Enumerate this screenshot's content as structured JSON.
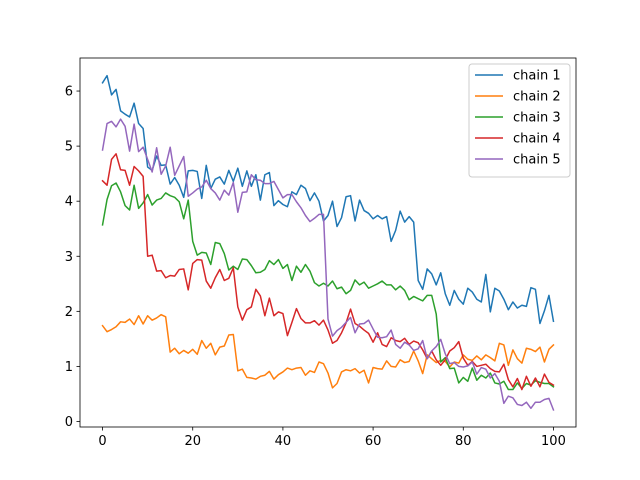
{
  "chart_data": {
    "type": "line",
    "title": "",
    "xlabel": "",
    "ylabel": "",
    "xlim": [
      -5,
      105
    ],
    "ylim": [
      -0.1,
      6.6
    ],
    "x_ticks": [
      0,
      20,
      40,
      60,
      80,
      100
    ],
    "y_ticks": [
      0,
      1,
      2,
      3,
      4,
      5,
      6
    ],
    "x_tick_labels": [
      "0",
      "20",
      "40",
      "60",
      "80",
      "100"
    ],
    "y_tick_labels": [
      "0",
      "1",
      "2",
      "3",
      "4",
      "5",
      "6"
    ],
    "grid": false,
    "legend_position": "top-right",
    "series": [
      {
        "name": "chain 1",
        "color": "#1f77b4",
        "values": [
          6.15,
          6.28,
          5.93,
          6.03,
          5.64,
          5.58,
          5.53,
          5.78,
          5.41,
          5.32,
          4.62,
          4.56,
          4.82,
          4.65,
          4.66,
          4.31,
          4.43,
          4.29,
          4.07,
          4.55,
          4.56,
          4.54,
          4.05,
          4.65,
          4.23,
          4.4,
          4.44,
          4.31,
          4.56,
          4.36,
          4.6,
          4.27,
          4.55,
          4.27,
          4.48,
          4.02,
          4.48,
          4.52,
          3.92,
          4.01,
          3.94,
          3.9,
          4.17,
          4.12,
          4.29,
          4.23,
          4.01,
          4.15,
          4.0,
          3.64,
          3.74,
          4.0,
          3.54,
          3.7,
          4.08,
          4.1,
          3.64,
          4.02,
          3.83,
          3.78,
          3.68,
          3.74,
          3.68,
          3.72,
          3.27,
          3.47,
          3.82,
          3.62,
          3.72,
          3.62,
          2.56,
          2.4,
          2.77,
          2.68,
          2.48,
          2.7,
          2.32,
          2.11,
          2.38,
          2.22,
          2.13,
          2.42,
          2.35,
          2.22,
          2.17,
          2.67,
          1.99,
          2.42,
          2.37,
          2.22,
          2.03,
          2.17,
          2.06,
          2.11,
          2.09,
          2.43,
          2.4,
          1.78,
          2.01,
          2.29,
          1.82
        ]
      },
      {
        "name": "chain 2",
        "color": "#ff7f0e",
        "values": [
          1.74,
          1.63,
          1.67,
          1.72,
          1.81,
          1.8,
          1.86,
          1.76,
          1.92,
          1.77,
          1.92,
          1.84,
          1.88,
          1.94,
          1.9,
          1.26,
          1.33,
          1.23,
          1.29,
          1.24,
          1.31,
          1.22,
          1.47,
          1.33,
          1.42,
          1.21,
          1.35,
          1.37,
          1.57,
          1.58,
          0.92,
          0.95,
          0.8,
          0.79,
          0.77,
          0.82,
          0.84,
          0.91,
          0.77,
          0.85,
          0.9,
          0.97,
          0.94,
          0.97,
          0.98,
          0.84,
          0.92,
          0.89,
          1.08,
          1.05,
          0.88,
          0.61,
          0.69,
          0.9,
          0.94,
          0.92,
          0.96,
          0.88,
          0.93,
          0.7,
          0.98,
          0.96,
          0.95,
          1.1,
          1.0,
          0.99,
          1.12,
          1.07,
          1.09,
          1.28,
          1.1,
          0.87,
          1.21,
          1.14,
          1.07,
          1.11,
          1.09,
          0.99,
          1.08,
          1.06,
          1.21,
          1.13,
          1.11,
          1.19,
          1.12,
          1.21,
          1.16,
          1.1,
          1.42,
          1.39,
          1.02,
          1.3,
          1.14,
          1.06,
          1.33,
          1.31,
          1.27,
          1.35,
          1.08,
          1.31,
          1.39
        ]
      },
      {
        "name": "chain 3",
        "color": "#2ca02c",
        "values": [
          3.57,
          4.03,
          4.28,
          4.33,
          4.17,
          3.92,
          3.84,
          4.29,
          3.87,
          3.97,
          4.12,
          3.93,
          4.02,
          4.05,
          4.15,
          4.1,
          4.07,
          3.99,
          3.68,
          4.02,
          3.27,
          3.02,
          3.07,
          3.06,
          2.85,
          3.25,
          3.23,
          3.05,
          2.75,
          2.82,
          2.76,
          2.95,
          2.94,
          2.83,
          2.7,
          2.71,
          2.76,
          2.92,
          2.85,
          2.94,
          2.78,
          2.85,
          2.56,
          2.82,
          2.71,
          2.85,
          2.73,
          2.52,
          2.46,
          2.51,
          2.46,
          2.55,
          2.41,
          2.44,
          2.32,
          2.38,
          2.57,
          2.48,
          2.53,
          2.42,
          2.46,
          2.5,
          2.55,
          2.48,
          2.48,
          2.39,
          2.46,
          2.38,
          2.21,
          2.27,
          2.23,
          2.19,
          2.29,
          2.29,
          1.95,
          1.08,
          1.16,
          0.96,
          0.97,
          0.7,
          0.8,
          0.73,
          0.97,
          0.75,
          0.84,
          0.79,
          0.88,
          0.7,
          0.68,
          0.73,
          0.58,
          0.58,
          0.7,
          0.6,
          0.69,
          0.66,
          0.74,
          0.71,
          0.69,
          0.69,
          0.63
        ]
      },
      {
        "name": "chain 4",
        "color": "#d62728",
        "values": [
          4.37,
          4.29,
          4.76,
          4.86,
          4.57,
          4.56,
          4.29,
          4.63,
          4.55,
          4.45,
          3.0,
          3.02,
          2.73,
          2.74,
          2.61,
          2.65,
          2.64,
          2.76,
          2.77,
          2.39,
          2.87,
          2.94,
          2.93,
          2.55,
          2.42,
          2.61,
          2.76,
          2.56,
          2.6,
          2.79,
          2.08,
          1.84,
          2.03,
          2.08,
          2.4,
          2.28,
          1.92,
          2.24,
          1.92,
          1.99,
          1.96,
          1.56,
          1.8,
          2.05,
          1.87,
          1.79,
          1.79,
          1.83,
          1.75,
          1.84,
          1.66,
          1.42,
          1.47,
          1.61,
          1.79,
          2.04,
          1.78,
          1.73,
          1.66,
          1.6,
          1.44,
          1.61,
          1.4,
          1.36,
          1.52,
          1.47,
          1.45,
          1.51,
          1.4,
          1.46,
          1.43,
          1.3,
          1.14,
          1.28,
          1.12,
          1.02,
          1.12,
          1.28,
          1.34,
          1.45,
          1.15,
          1.02,
          1.09,
          1.0,
          1.02,
          1.04,
          0.96,
          0.91,
          0.9,
          1.04,
          0.76,
          0.63,
          0.78,
          0.58,
          0.82,
          0.64,
          0.79,
          0.63,
          0.86,
          0.71,
          0.66
        ]
      },
      {
        "name": "chain 5",
        "color": "#9467bd",
        "values": [
          4.93,
          5.41,
          5.45,
          5.35,
          5.49,
          5.36,
          4.91,
          5.4,
          4.9,
          4.98,
          4.76,
          4.53,
          4.97,
          4.49,
          4.64,
          4.98,
          4.47,
          4.64,
          4.81,
          4.09,
          4.15,
          4.22,
          4.26,
          4.38,
          4.23,
          4.15,
          4.02,
          4.2,
          4.11,
          4.34,
          3.8,
          4.16,
          4.17,
          4.48,
          4.39,
          4.38,
          4.32,
          4.32,
          4.36,
          4.21,
          4.06,
          4.12,
          4.12,
          3.99,
          3.88,
          3.74,
          3.63,
          3.69,
          3.76,
          3.76,
          1.86,
          1.55,
          1.65,
          1.71,
          1.8,
          1.89,
          1.61,
          1.77,
          1.78,
          1.84,
          1.68,
          1.53,
          1.52,
          1.54,
          1.66,
          1.4,
          1.33,
          1.44,
          1.39,
          1.29,
          1.32,
          1.47,
          1.14,
          1.28,
          1.36,
          1.49,
          1.23,
          1.05,
          1.07,
          1.0,
          0.99,
          1.01,
          1.08,
          0.86,
          0.98,
          0.95,
          0.79,
          0.87,
          0.73,
          0.33,
          0.46,
          0.43,
          0.31,
          0.29,
          0.35,
          0.24,
          0.35,
          0.35,
          0.4,
          0.42,
          0.21
        ]
      }
    ]
  }
}
